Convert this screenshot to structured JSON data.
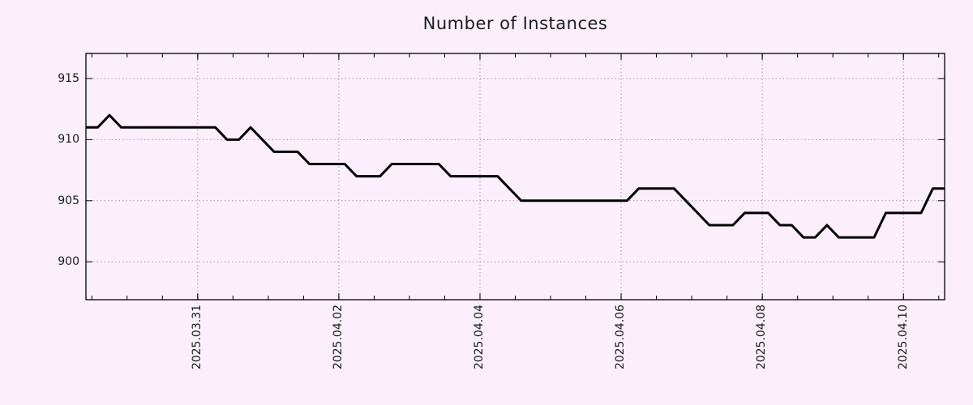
{
  "title": "Number of Instances",
  "colors": {
    "background": "#faeffb",
    "line": "#000000",
    "grid": "#a39ca3",
    "axis": "#000000",
    "text": "#1c1c1c"
  },
  "chart_data": {
    "type": "line",
    "title": "Number of Instances",
    "xlabel": "",
    "ylabel": "",
    "x_start": "2025-03-29T10:00:00",
    "x_interval_hours": 4,
    "values": [
      911,
      911,
      912,
      911,
      911,
      911,
      911,
      911,
      911,
      911,
      911,
      911,
      910,
      910,
      911,
      910,
      909,
      909,
      909,
      908,
      908,
      908,
      908,
      907,
      907,
      907,
      908,
      908,
      908,
      908,
      908,
      907,
      907,
      907,
      907,
      907,
      906,
      905,
      905,
      905,
      905,
      905,
      905,
      905,
      905,
      905,
      905,
      906,
      906,
      906,
      906,
      905,
      904,
      903,
      903,
      903,
      904,
      904,
      904,
      903,
      903,
      902,
      902,
      903,
      902,
      902,
      902,
      902,
      904,
      904,
      904,
      904,
      906,
      906
    ],
    "x_tick_labels": [
      "2025.03.31",
      "2025.04.02",
      "2025.04.04",
      "2025.04.06",
      "2025.04.08",
      "2025.04.10"
    ],
    "x_minor_tick_hours": 12,
    "y_ticks": [
      "915",
      "910",
      "905",
      "900"
    ],
    "ylim": [
      896.9,
      917.05
    ],
    "grid": true,
    "legend": false
  }
}
